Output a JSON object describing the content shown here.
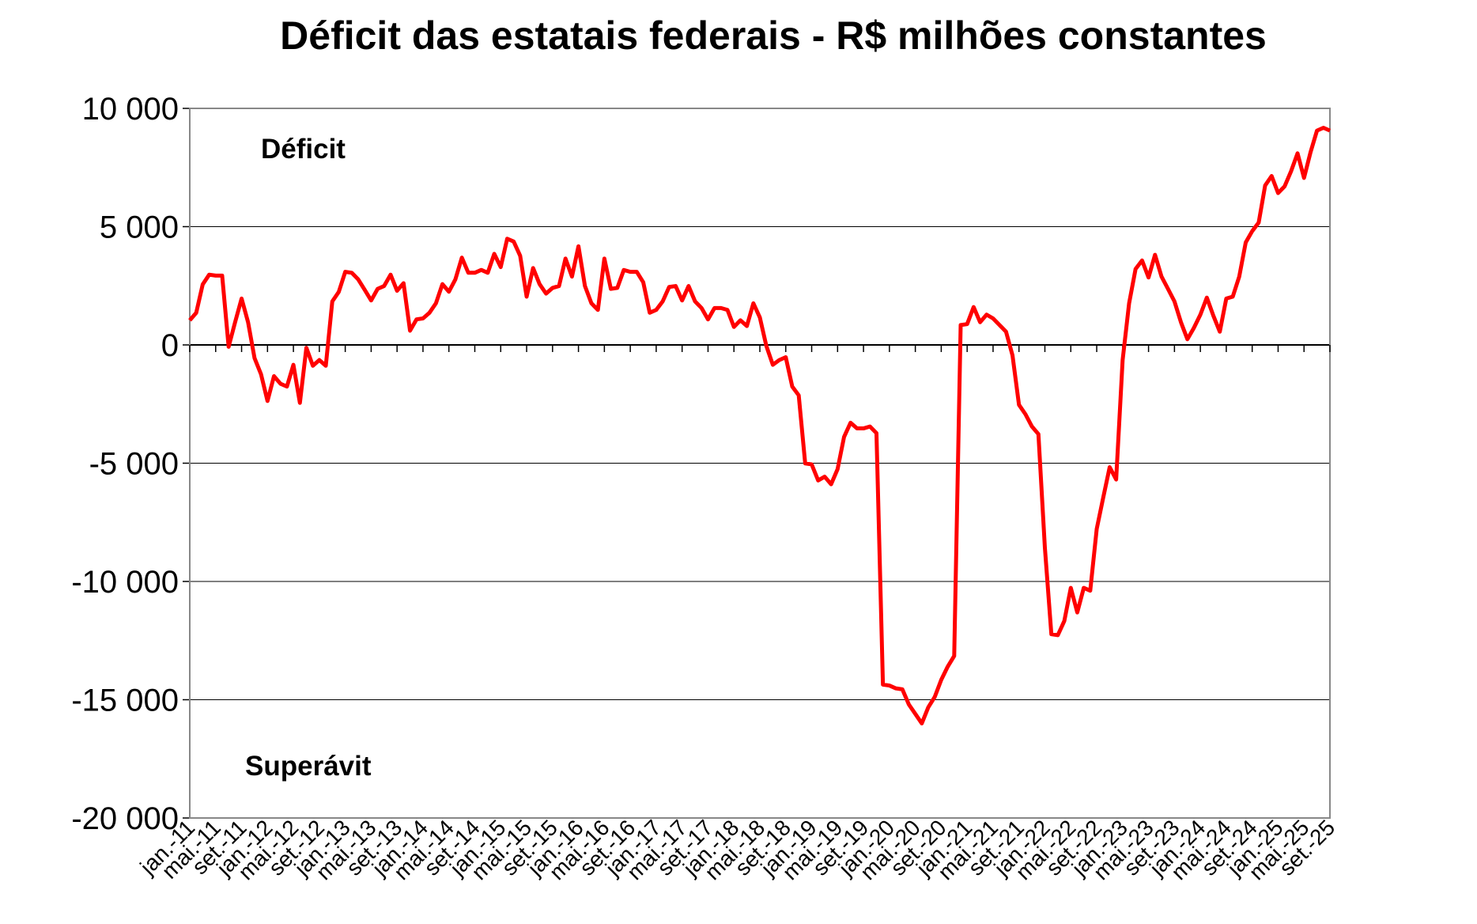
{
  "chart_data": {
    "type": "line",
    "title": "Déficit das estatais federais - R$ milhões constantes",
    "annotations": [
      "Déficit",
      "Superávit"
    ],
    "categories": [
      "jan.-11",
      null,
      null,
      null,
      "mai.-11",
      null,
      null,
      null,
      "set.-11",
      null,
      null,
      null,
      "jan.-12",
      null,
      null,
      null,
      "mai.-12",
      null,
      null,
      null,
      "set.-12",
      null,
      null,
      null,
      "jan.-13",
      null,
      null,
      null,
      "mai.-13",
      null,
      null,
      null,
      "set.-13",
      null,
      null,
      null,
      "jan.-14",
      null,
      null,
      null,
      "mai.-14",
      null,
      null,
      null,
      "set.-14",
      null,
      null,
      null,
      "jan.-15",
      null,
      null,
      null,
      "mai.-15",
      null,
      null,
      null,
      "set.-15",
      null,
      null,
      null,
      "jan.-16",
      null,
      null,
      null,
      "mai.-16",
      null,
      null,
      null,
      "set.-16",
      null,
      null,
      null,
      "jan.-17",
      null,
      null,
      null,
      "mai.-17",
      null,
      null,
      null,
      "set.-17",
      null,
      null,
      null,
      "jan.-18",
      null,
      null,
      null,
      "mai.-18",
      null,
      null,
      null,
      "set.-18",
      null,
      null,
      null,
      "jan.-19",
      null,
      null,
      null,
      "mai.-19",
      null,
      null,
      null,
      "set.-19",
      null,
      null,
      null,
      "jan.-20",
      null,
      null,
      null,
      "mai.-20",
      null,
      null,
      null,
      "set.-20",
      null,
      null,
      null,
      "jan.-21",
      null,
      null,
      null,
      "mai.-21",
      null,
      null,
      null,
      "set.-21",
      null,
      null,
      null,
      "jan.-22",
      null,
      null,
      null,
      "mai.-22",
      null,
      null,
      null,
      "set.-22",
      null,
      null,
      null,
      "jan.-23",
      null,
      null,
      null,
      "mai.-23",
      null,
      null,
      null,
      "set.-23",
      null,
      null,
      null,
      "jan.-24",
      null,
      null,
      null,
      "mai.-24",
      null,
      null,
      null,
      "set.-24",
      null,
      null,
      null,
      "jan.-25",
      null,
      null,
      null,
      "mai.-25",
      null,
      null,
      null,
      "set.-25"
    ],
    "series": [
      {
        "name": "Déficit das estatais federais",
        "color": "#ff0000",
        "values": [
          1040,
          1360,
          2560,
          2970,
          2930,
          2930,
          -80,
          960,
          1960,
          960,
          -560,
          -1240,
          -2370,
          -1320,
          -1640,
          -1760,
          -840,
          -2450,
          -120,
          -880,
          -640,
          -880,
          1840,
          2240,
          3090,
          3050,
          2770,
          2330,
          1880,
          2370,
          2490,
          2970,
          2290,
          2610,
          600,
          1080,
          1120,
          1360,
          1760,
          2570,
          2250,
          2770,
          3690,
          3050,
          3050,
          3170,
          3050,
          3850,
          3290,
          4490,
          4370,
          3770,
          2040,
          3250,
          2570,
          2170,
          2410,
          2490,
          3650,
          2890,
          4170,
          2490,
          1760,
          1480,
          3650,
          2370,
          2410,
          3170,
          3090,
          3090,
          2650,
          1360,
          1480,
          1840,
          2450,
          2490,
          1880,
          2490,
          1840,
          1560,
          1080,
          1560,
          1560,
          1480,
          760,
          1040,
          800,
          1760,
          1160,
          -40,
          -840,
          -640,
          -520,
          -1760,
          -2130,
          -5010,
          -5050,
          -5730,
          -5570,
          -5890,
          -5250,
          -3890,
          -3290,
          -3530,
          -3530,
          -3450,
          -3730,
          -14360,
          -14400,
          -14520,
          -14560,
          -15200,
          -15600,
          -16000,
          -15320,
          -14880,
          -14160,
          -13600,
          -13150,
          840,
          880,
          1600,
          960,
          1280,
          1120,
          840,
          560,
          -440,
          -2530,
          -2930,
          -3450,
          -3770,
          -8580,
          -12230,
          -12270,
          -11670,
          -10270,
          -11310,
          -10270,
          -10390,
          -7780,
          -6460,
          -5170,
          -5690,
          -640,
          1760,
          3210,
          3570,
          2850,
          3810,
          2890,
          2370,
          1840,
          960,
          240,
          720,
          1280,
          2000,
          1240,
          560,
          1960,
          2040,
          2890,
          4330,
          4810,
          5170,
          6740,
          7140,
          6420,
          6700,
          7340,
          8100,
          7060,
          8140,
          9060,
          9180,
          9060
        ]
      }
    ],
    "ylim": [
      -20000,
      10000
    ],
    "yticks": [
      {
        "value": -20000,
        "label": "-20 000"
      },
      {
        "value": -15000,
        "label": "-15 000"
      },
      {
        "value": -10000,
        "label": "-10 000"
      },
      {
        "value": -5000,
        "label": "-5 000"
      },
      0,
      {
        "value": 5000,
        "label": "5 000"
      },
      {
        "value": 10000,
        "label": "10 000"
      }
    ],
    "grid": true
  }
}
